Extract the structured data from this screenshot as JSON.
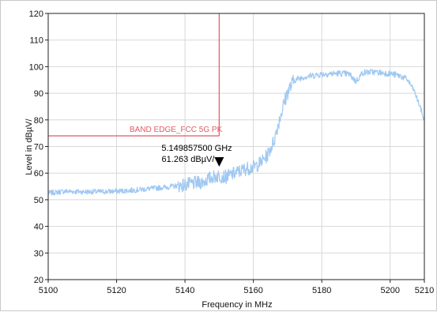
{
  "chart_data": {
    "type": "line",
    "xlabel": "Frequency in MHz",
    "ylabel": "Level in dBµV/",
    "xlim": [
      5100,
      5210
    ],
    "ylim": [
      20,
      120
    ],
    "x_ticks": [
      5100,
      5120,
      5140,
      5160,
      5180,
      5200,
      5210
    ],
    "y_ticks": [
      20,
      30,
      40,
      50,
      60,
      70,
      80,
      90,
      100,
      110,
      120
    ],
    "grid": true,
    "colors": {
      "trace": "#9fc8f2",
      "limit": "#e05a63",
      "grid": "#d8d8d8",
      "axis": "#222222"
    },
    "series": [
      {
        "x": [
          5100,
          5105,
          5110,
          5115,
          5120,
          5125,
          5130,
          5135,
          5140,
          5145,
          5148,
          5150,
          5152,
          5155,
          5158,
          5160,
          5162,
          5164,
          5166,
          5168,
          5170,
          5172,
          5175,
          5180,
          5185,
          5188,
          5190,
          5192,
          5195,
          5200,
          5203,
          5205,
          5207,
          5209,
          5210
        ],
        "y": [
          52.5,
          53.2,
          53.0,
          53.0,
          53.2,
          53.6,
          54.2,
          54.8,
          55.6,
          56.6,
          58.5,
          59.0,
          58.6,
          60.2,
          61.8,
          62.2,
          63.8,
          66.5,
          72.0,
          82.0,
          90.5,
          95.0,
          96.2,
          97.2,
          97.5,
          97.2,
          94.5,
          97.8,
          98.0,
          97.4,
          96.5,
          95.2,
          91.0,
          84.0,
          79.5
        ]
      }
    ],
    "limit": {
      "label": "BAND EDGE_FCC 5G PK",
      "level": 74,
      "frequency": 5150
    },
    "marker": {
      "frequency": 5150,
      "level": 61.263,
      "freq_label": "5.149857500 GHz",
      "level_label": "61.263 dBµV/"
    }
  }
}
